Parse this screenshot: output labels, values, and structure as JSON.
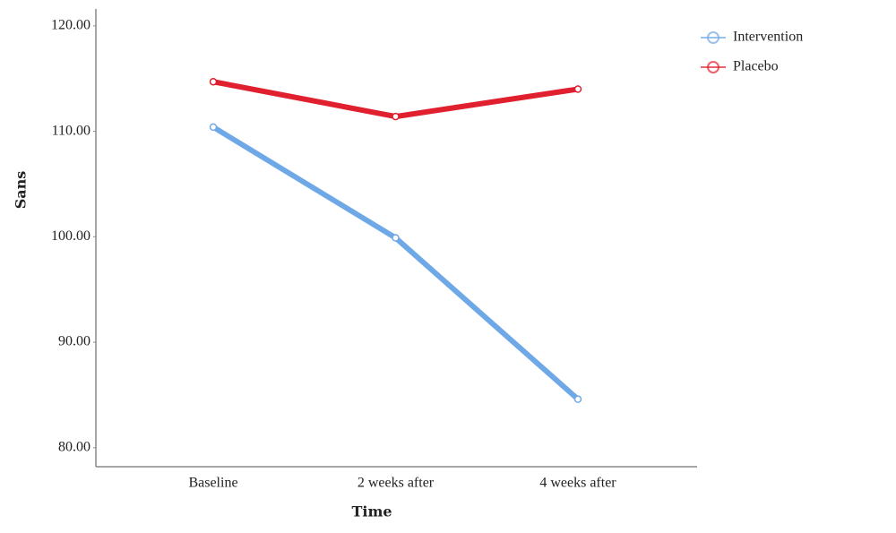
{
  "chart_data": {
    "type": "line",
    "x_label": "Time",
    "y_label": "Sans",
    "categories": [
      "Baseline",
      "2 weeks after",
      "4 weeks after"
    ],
    "series": [
      {
        "name": "Intervention",
        "color": "#6fa8e6",
        "values": [
          110.4,
          99.9,
          84.6
        ]
      },
      {
        "name": "Placebo",
        "color": "#e0202e",
        "values": [
          114.7,
          111.4,
          114.0
        ]
      }
    ],
    "ylim": [
      78.2,
      121.6
    ],
    "yticks": [
      {
        "value": 80,
        "label": "80.00"
      },
      {
        "value": 90,
        "label": "90.00"
      },
      {
        "value": 100,
        "label": "100.00"
      },
      {
        "value": 110,
        "label": "110.00"
      },
      {
        "value": 120,
        "label": "120.00"
      }
    ],
    "grid": false,
    "legend": "top-right"
  }
}
